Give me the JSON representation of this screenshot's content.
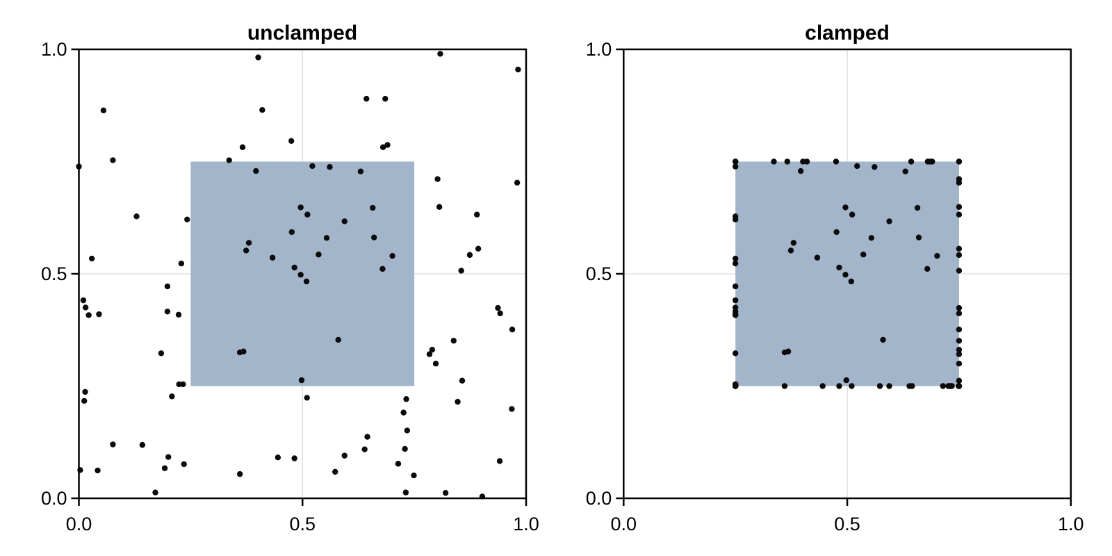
{
  "figure": {
    "background": "#ffffff",
    "titles": {
      "left": "unclamped",
      "right": "clamped"
    }
  },
  "style": {
    "box_fill": "#a3b5ca",
    "marker_color": "#0a0a0a",
    "marker_radius": 4.2,
    "grid_color": "#e0e0e0",
    "grid_width": 1.5,
    "frame_color": "#000000",
    "frame_width": 2.5,
    "tick_length": 11,
    "tick_width": 2.5,
    "tick_font_size": 27,
    "tick_label_color": "#000000"
  },
  "chart_data": [
    {
      "type": "scatter",
      "title": "unclamped",
      "xlabel": "",
      "ylabel": "",
      "xlim": [
        0,
        1
      ],
      "ylim": [
        0,
        1
      ],
      "xticks": {
        "values": [
          0,
          0.5,
          1
        ],
        "labels": [
          "0.0",
          "0.5",
          "1.0"
        ]
      },
      "yticks": {
        "values": [
          0,
          0.5,
          1
        ],
        "labels": [
          "0.0",
          "0.5",
          "1.0"
        ]
      },
      "grid_values": {
        "x": [
          0.5
        ],
        "y": [
          0.5
        ]
      },
      "legend": "none",
      "box": {
        "x0": 0.25,
        "x1": 0.75,
        "y0": 0.25,
        "y1": 0.75
      },
      "points": [
        [
          0.401,
          0.982
        ],
        [
          0.055,
          0.864
        ],
        [
          0.41,
          0.865
        ],
        [
          0.475,
          0.796
        ],
        [
          0.366,
          0.782
        ],
        [
          0.336,
          0.753
        ],
        [
          0.076,
          0.753
        ],
        [
          0.0,
          0.739
        ],
        [
          0.396,
          0.729
        ],
        [
          0.129,
          0.628
        ],
        [
          0.242,
          0.621
        ],
        [
          0.476,
          0.593
        ],
        [
          0.38,
          0.569
        ],
        [
          0.374,
          0.552
        ],
        [
          0.029,
          0.534
        ],
        [
          0.433,
          0.536
        ],
        [
          0.229,
          0.523
        ],
        [
          0.482,
          0.514
        ],
        [
          0.808,
          0.99
        ],
        [
          0.982,
          0.955
        ],
        [
          0.643,
          0.89
        ],
        [
          0.685,
          0.89
        ],
        [
          0.68,
          0.782
        ],
        [
          0.69,
          0.787
        ],
        [
          0.522,
          0.74
        ],
        [
          0.561,
          0.738
        ],
        [
          0.63,
          0.728
        ],
        [
          0.802,
          0.711
        ],
        [
          0.98,
          0.703
        ],
        [
          0.496,
          0.648
        ],
        [
          0.511,
          0.632
        ],
        [
          0.657,
          0.647
        ],
        [
          0.806,
          0.649
        ],
        [
          0.89,
          0.632
        ],
        [
          0.594,
          0.617
        ],
        [
          0.554,
          0.58
        ],
        [
          0.66,
          0.581
        ],
        [
          0.536,
          0.543
        ],
        [
          0.701,
          0.54
        ],
        [
          0.893,
          0.556
        ],
        [
          0.874,
          0.542
        ],
        [
          0.679,
          0.511
        ],
        [
          0.855,
          0.507
        ],
        [
          0.198,
          0.472
        ],
        [
          0.01,
          0.441
        ],
        [
          0.015,
          0.425
        ],
        [
          0.022,
          0.408
        ],
        [
          0.045,
          0.41
        ],
        [
          0.198,
          0.416
        ],
        [
          0.223,
          0.409
        ],
        [
          0.36,
          0.325
        ],
        [
          0.368,
          0.327
        ],
        [
          0.184,
          0.323
        ],
        [
          0.498,
          0.263
        ],
        [
          0.224,
          0.254
        ],
        [
          0.233,
          0.254
        ],
        [
          0.014,
          0.237
        ],
        [
          0.208,
          0.227
        ],
        [
          0.012,
          0.217
        ],
        [
          0.076,
          0.12
        ],
        [
          0.142,
          0.119
        ],
        [
          0.2,
          0.092
        ],
        [
          0.235,
          0.076
        ],
        [
          0.192,
          0.067
        ],
        [
          0.003,
          0.063
        ],
        [
          0.042,
          0.062
        ],
        [
          0.445,
          0.091
        ],
        [
          0.482,
          0.089
        ],
        [
          0.36,
          0.054
        ],
        [
          0.171,
          0.013
        ],
        [
          0.496,
          0.498
        ],
        [
          0.509,
          0.483
        ],
        [
          0.937,
          0.424
        ],
        [
          0.942,
          0.412
        ],
        [
          0.969,
          0.376
        ],
        [
          0.58,
          0.353
        ],
        [
          0.838,
          0.351
        ],
        [
          0.79,
          0.331
        ],
        [
          0.784,
          0.321
        ],
        [
          0.798,
          0.3
        ],
        [
          0.857,
          0.262
        ],
        [
          0.51,
          0.224
        ],
        [
          0.732,
          0.221
        ],
        [
          0.847,
          0.215
        ],
        [
          0.968,
          0.199
        ],
        [
          0.726,
          0.191
        ],
        [
          0.734,
          0.151
        ],
        [
          0.645,
          0.137
        ],
        [
          0.639,
          0.109
        ],
        [
          0.729,
          0.11
        ],
        [
          0.594,
          0.095
        ],
        [
          0.714,
          0.077
        ],
        [
          0.941,
          0.083
        ],
        [
          0.573,
          0.059
        ],
        [
          0.749,
          0.051
        ],
        [
          0.731,
          0.013
        ],
        [
          0.82,
          0.012
        ],
        [
          0.902,
          0.004
        ]
      ]
    },
    {
      "type": "scatter",
      "title": "clamped",
      "xlabel": "",
      "ylabel": "",
      "xlim": [
        0,
        1
      ],
      "ylim": [
        0,
        1
      ],
      "xticks": {
        "values": [
          0,
          0.5,
          1
        ],
        "labels": [
          "0.0",
          "0.5",
          "1.0"
        ]
      },
      "yticks": {
        "values": [
          0,
          0.5,
          1
        ],
        "labels": [
          "0.0",
          "0.5",
          "1.0"
        ]
      },
      "grid_values": {
        "x": [
          0.5
        ],
        "y": [
          0.5
        ]
      },
      "legend": "none",
      "box": {
        "x0": 0.25,
        "x1": 0.75,
        "y0": 0.25,
        "y1": 0.75
      },
      "points": [
        [
          0.401,
          0.75
        ],
        [
          0.25,
          0.75
        ],
        [
          0.41,
          0.75
        ],
        [
          0.475,
          0.75
        ],
        [
          0.366,
          0.75
        ],
        [
          0.336,
          0.75
        ],
        [
          0.25,
          0.75
        ],
        [
          0.25,
          0.739
        ],
        [
          0.396,
          0.729
        ],
        [
          0.25,
          0.628
        ],
        [
          0.25,
          0.621
        ],
        [
          0.476,
          0.593
        ],
        [
          0.38,
          0.569
        ],
        [
          0.374,
          0.552
        ],
        [
          0.25,
          0.534
        ],
        [
          0.433,
          0.536
        ],
        [
          0.25,
          0.523
        ],
        [
          0.482,
          0.514
        ],
        [
          0.75,
          0.75
        ],
        [
          0.75,
          0.75
        ],
        [
          0.643,
          0.75
        ],
        [
          0.685,
          0.75
        ],
        [
          0.68,
          0.75
        ],
        [
          0.69,
          0.75
        ],
        [
          0.522,
          0.74
        ],
        [
          0.561,
          0.738
        ],
        [
          0.63,
          0.728
        ],
        [
          0.75,
          0.711
        ],
        [
          0.75,
          0.703
        ],
        [
          0.496,
          0.648
        ],
        [
          0.511,
          0.632
        ],
        [
          0.657,
          0.647
        ],
        [
          0.75,
          0.649
        ],
        [
          0.75,
          0.632
        ],
        [
          0.594,
          0.617
        ],
        [
          0.554,
          0.58
        ],
        [
          0.66,
          0.581
        ],
        [
          0.536,
          0.543
        ],
        [
          0.701,
          0.54
        ],
        [
          0.75,
          0.556
        ],
        [
          0.75,
          0.542
        ],
        [
          0.679,
          0.511
        ],
        [
          0.75,
          0.507
        ],
        [
          0.25,
          0.472
        ],
        [
          0.25,
          0.441
        ],
        [
          0.25,
          0.425
        ],
        [
          0.25,
          0.408
        ],
        [
          0.25,
          0.41
        ],
        [
          0.25,
          0.416
        ],
        [
          0.25,
          0.409
        ],
        [
          0.36,
          0.325
        ],
        [
          0.368,
          0.327
        ],
        [
          0.25,
          0.323
        ],
        [
          0.498,
          0.263
        ],
        [
          0.25,
          0.254
        ],
        [
          0.25,
          0.254
        ],
        [
          0.25,
          0.25
        ],
        [
          0.25,
          0.25
        ],
        [
          0.25,
          0.25
        ],
        [
          0.25,
          0.25
        ],
        [
          0.25,
          0.25
        ],
        [
          0.25,
          0.25
        ],
        [
          0.25,
          0.25
        ],
        [
          0.25,
          0.25
        ],
        [
          0.25,
          0.25
        ],
        [
          0.25,
          0.25
        ],
        [
          0.445,
          0.25
        ],
        [
          0.482,
          0.25
        ],
        [
          0.36,
          0.25
        ],
        [
          0.25,
          0.25
        ],
        [
          0.496,
          0.498
        ],
        [
          0.509,
          0.483
        ],
        [
          0.75,
          0.424
        ],
        [
          0.75,
          0.412
        ],
        [
          0.75,
          0.376
        ],
        [
          0.58,
          0.353
        ],
        [
          0.75,
          0.351
        ],
        [
          0.75,
          0.331
        ],
        [
          0.75,
          0.321
        ],
        [
          0.75,
          0.3
        ],
        [
          0.75,
          0.262
        ],
        [
          0.51,
          0.25
        ],
        [
          0.732,
          0.25
        ],
        [
          0.75,
          0.25
        ],
        [
          0.75,
          0.25
        ],
        [
          0.726,
          0.25
        ],
        [
          0.734,
          0.25
        ],
        [
          0.645,
          0.25
        ],
        [
          0.639,
          0.25
        ],
        [
          0.729,
          0.25
        ],
        [
          0.594,
          0.25
        ],
        [
          0.714,
          0.25
        ],
        [
          0.75,
          0.25
        ],
        [
          0.573,
          0.25
        ],
        [
          0.749,
          0.25
        ],
        [
          0.731,
          0.25
        ],
        [
          0.75,
          0.25
        ],
        [
          0.75,
          0.25
        ]
      ]
    }
  ]
}
